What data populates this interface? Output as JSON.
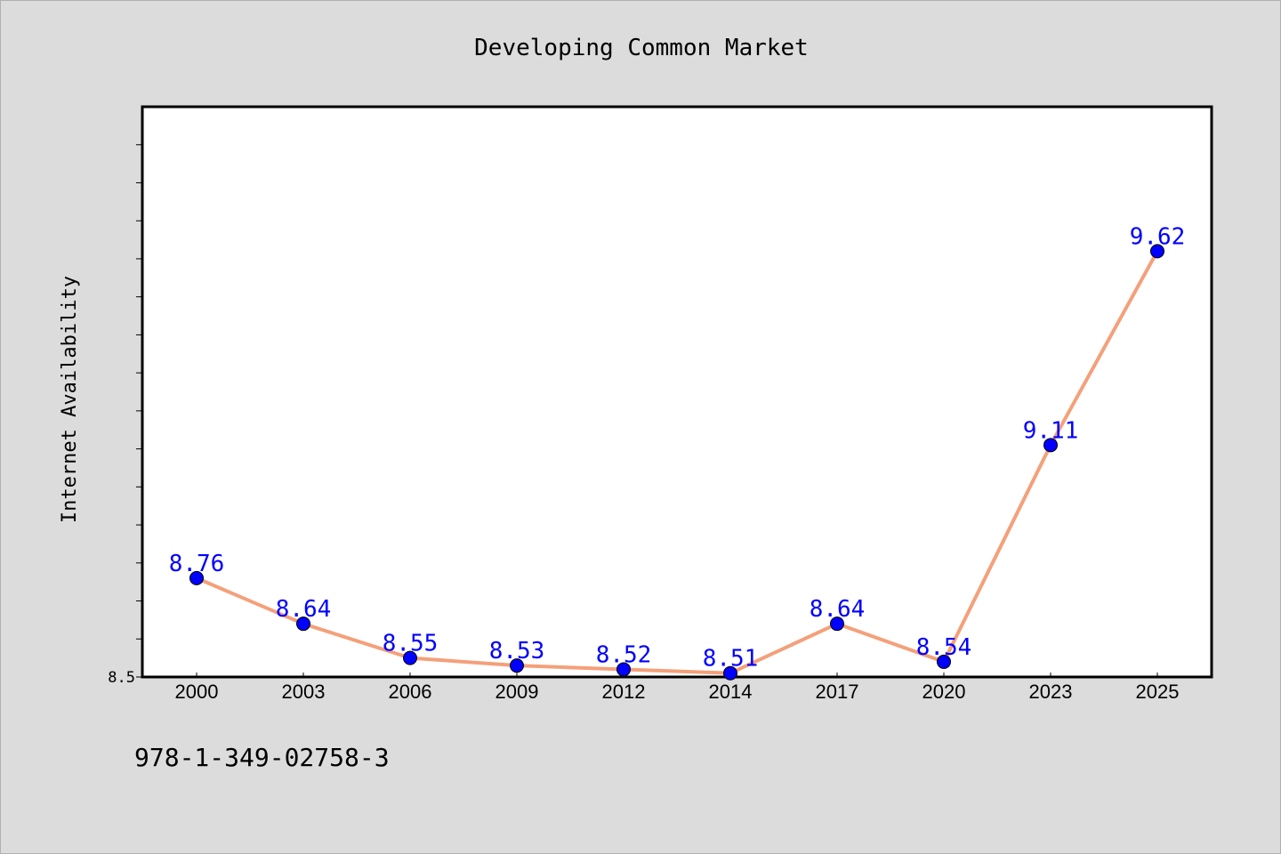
{
  "chart_data": {
    "type": "line",
    "title": "Developing Common Market",
    "xlabel": "",
    "ylabel": "Internet Availability",
    "categories": [
      "2000",
      "2003",
      "2006",
      "2009",
      "2012",
      "2014",
      "2017",
      "2020",
      "2023",
      "2025"
    ],
    "series": [
      {
        "values": [
          8.76,
          8.64,
          8.55,
          8.53,
          8.52,
          8.51,
          8.64,
          8.54,
          9.11,
          9.62
        ],
        "data_labels": [
          "8.76",
          "8.64",
          "8.55",
          "8.53",
          "8.52",
          "8.51",
          "8.64",
          "8.54",
          "9.11",
          "9.62"
        ]
      }
    ],
    "ytick_labels": [
      "8.5"
    ],
    "ylim": [
      8.5,
      10.0
    ],
    "grid": false,
    "legend": "none",
    "colors": {
      "line": "#f4a07a",
      "marker": "#0000ff",
      "label": "#0000ff",
      "plot_background": "#ffffff",
      "figure_background": "#dcdcdc"
    }
  },
  "footer_text": "978-1-349-02758-3"
}
